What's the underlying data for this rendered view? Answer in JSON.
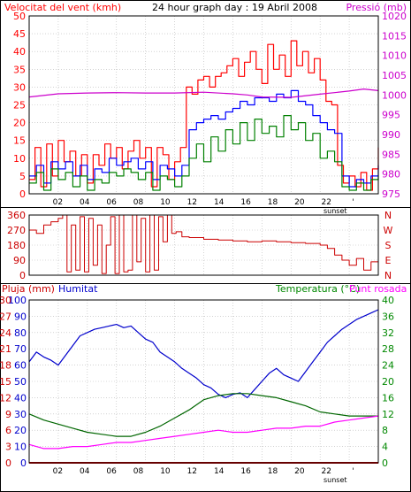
{
  "colors": {
    "wind_avg": "#008000",
    "wind_gust": "#ff0000",
    "wind_hi": "#0000ff",
    "pressure": "#cc00cc",
    "direction": "#cc0000",
    "humidity": "#0000cc",
    "temperature": "#006600",
    "dewpoint": "#ff00ff",
    "rain": "#cc0000",
    "grid": "#b8b8b8"
  },
  "chart_data": [
    {
      "type": "line",
      "title": "24 hour graph day : 19 Abril 2008",
      "ylabel_left": "Velocitat del vent (kmh)",
      "ylabel_right": "Pressió (mb)",
      "x_ticks": [
        "02",
        "04",
        "06",
        "08",
        "10",
        "12",
        "14",
        "16",
        "18",
        "20",
        "22",
        "'"
      ],
      "sunset_label": "sunset",
      "y_ticks_left": [
        "0",
        "5",
        "10",
        "15",
        "20",
        "25",
        "30",
        "35",
        "40",
        "45",
        "50"
      ],
      "y_ticks_right": [
        "975",
        "980",
        "985",
        "990",
        "995",
        "1000",
        "1005",
        "1010",
        "1015",
        "1020"
      ],
      "xlim": [
        0,
        24
      ],
      "ylim_left": [
        0,
        50
      ],
      "ylim_right": [
        975,
        1020
      ],
      "series": [
        {
          "axis": "left",
          "color_key": "wind_gust",
          "x": [
            0,
            0.4,
            0.8,
            1.2,
            1.6,
            2,
            2.4,
            2.8,
            3.2,
            3.6,
            4,
            4.4,
            4.8,
            5.2,
            5.6,
            6,
            6.4,
            6.8,
            7.2,
            7.6,
            8,
            8.4,
            8.8,
            9.2,
            9.6,
            10,
            10.4,
            10.8,
            11.2,
            11.6,
            12,
            12.4,
            12.8,
            13.2,
            13.6,
            14,
            14.4,
            14.8,
            15.2,
            15.6,
            16,
            16.4,
            16.8,
            17.2,
            17.6,
            18,
            18.4,
            18.8,
            19.2,
            19.6,
            20,
            20.4,
            20.8,
            21.2,
            21.6,
            22,
            22.4,
            22.8,
            23.2,
            23.6,
            24
          ],
          "values": [
            4,
            13,
            2,
            14,
            5,
            15,
            9,
            12,
            5,
            11,
            3,
            11,
            8,
            14,
            10,
            13,
            7,
            12,
            15,
            10,
            13,
            2,
            13,
            11,
            4,
            9,
            13,
            30,
            28,
            32,
            33,
            30,
            33,
            34,
            36,
            38,
            33,
            37,
            40,
            35,
            31,
            42,
            35,
            39,
            33,
            43,
            36,
            40,
            34,
            38,
            32,
            26,
            25,
            8,
            3,
            5,
            2,
            6,
            1,
            7,
            13
          ]
        },
        {
          "axis": "left",
          "color_key": "wind_hi",
          "x": [
            0,
            0.5,
            1,
            1.5,
            2,
            2.5,
            3,
            3.5,
            4,
            4.5,
            5,
            5.5,
            6,
            6.5,
            7,
            7.5,
            8,
            8.5,
            9,
            9.5,
            10,
            10.5,
            11,
            11.5,
            12,
            12.5,
            13,
            13.5,
            14,
            14.5,
            15,
            15.5,
            16,
            16.5,
            17,
            17.5,
            18,
            18.5,
            19,
            19.5,
            20,
            20.5,
            21,
            21.5,
            22,
            22.5,
            23,
            23.5,
            24
          ],
          "values": [
            5,
            8,
            3,
            9,
            7,
            9,
            5,
            8,
            4,
            7,
            6,
            10,
            8,
            9,
            10,
            7,
            9,
            4,
            8,
            7,
            5,
            8,
            18,
            20,
            21,
            22,
            21,
            23,
            24,
            26,
            25,
            27,
            27,
            26,
            28,
            27,
            29,
            26,
            25,
            22,
            20,
            18,
            17,
            5,
            2,
            4,
            3,
            5,
            8
          ]
        },
        {
          "axis": "left",
          "color_key": "wind_avg",
          "x": [
            0,
            0.5,
            1,
            1.5,
            2,
            2.5,
            3,
            3.5,
            4,
            4.5,
            5,
            5.5,
            6,
            6.5,
            7,
            7.5,
            8,
            8.5,
            9,
            9.5,
            10,
            10.5,
            11,
            11.5,
            12,
            12.5,
            13,
            13.5,
            14,
            14.5,
            15,
            15.5,
            16,
            16.5,
            17,
            17.5,
            18,
            18.5,
            19,
            19.5,
            20,
            20.5,
            21,
            21.5,
            22,
            22.5,
            23,
            23.5,
            24
          ],
          "values": [
            3,
            6,
            1,
            7,
            4,
            6,
            2,
            5,
            1,
            4,
            3,
            6,
            5,
            7,
            6,
            4,
            6,
            1,
            5,
            4,
            2,
            5,
            10,
            14,
            9,
            16,
            12,
            18,
            14,
            20,
            15,
            21,
            17,
            19,
            16,
            22,
            18,
            20,
            15,
            17,
            10,
            12,
            9,
            2,
            1,
            3,
            1,
            4,
            5
          ]
        },
        {
          "axis": "right",
          "color_key": "pressure",
          "x": [
            0,
            2,
            4,
            6,
            8,
            10,
            12,
            14,
            15,
            16,
            18,
            20,
            22,
            23,
            24
          ],
          "values": [
            999.5,
            1000.3,
            1000.5,
            1000.6,
            1000.5,
            1000.5,
            1000.7,
            1000.3,
            1000.0,
            999.5,
            999.4,
            1000.2,
            1001.0,
            1001.5,
            1001.1
          ]
        }
      ]
    },
    {
      "type": "line",
      "x_ticks": [],
      "y_ticks_left": [
        "0",
        "90",
        "180",
        "270",
        "360"
      ],
      "compass_labels": [
        "N",
        "W",
        "S",
        "E",
        "N"
      ],
      "xlim": [
        0,
        24
      ],
      "ylim": [
        0,
        360
      ],
      "series": [
        {
          "color_key": "direction",
          "x": [
            0,
            0.5,
            1,
            1.5,
            2,
            2.3,
            2.6,
            2.9,
            3.2,
            3.5,
            3.8,
            4.1,
            4.4,
            4.7,
            5,
            5.3,
            5.6,
            5.9,
            6.2,
            6.5,
            6.8,
            7.1,
            7.4,
            7.7,
            8,
            8.3,
            8.6,
            8.9,
            9.2,
            9.5,
            9.8,
            10.1,
            10.5,
            11,
            12,
            13,
            14,
            15,
            16,
            17,
            18,
            19,
            20,
            20.5,
            21,
            21.5,
            22,
            22.5,
            23,
            23.5,
            24
          ],
          "values": [
            270,
            250,
            300,
            320,
            340,
            360,
            20,
            300,
            30,
            350,
            20,
            340,
            60,
            300,
            10,
            180,
            350,
            10,
            360,
            20,
            30,
            360,
            80,
            340,
            20,
            360,
            30,
            350,
            200,
            360,
            250,
            260,
            230,
            225,
            215,
            210,
            205,
            200,
            205,
            200,
            195,
            190,
            180,
            160,
            120,
            90,
            60,
            100,
            30,
            80,
            40
          ]
        }
      ]
    },
    {
      "type": "line",
      "ylabel_left_rain": "Pluja (mm)",
      "ylabel_left_hum": "Humitat",
      "ylabel_right": "Temperatura (°C)",
      "ylabel_right2": "Punt rosada",
      "x_ticks": [
        "02",
        "04",
        "06",
        "08",
        "10",
        "12",
        "14",
        "16",
        "18",
        "20",
        "22",
        "'"
      ],
      "sunset_label": "sunset",
      "y_ticks_rain": [
        "0",
        "3",
        "6",
        "9",
        "12",
        "15",
        "18",
        "21",
        "24",
        "27",
        "30"
      ],
      "y_ticks_hum": [
        "0",
        "10",
        "20",
        "30",
        "40",
        "50",
        "60",
        "70",
        "80",
        "90",
        "100"
      ],
      "y_ticks_right": [
        "0",
        "4",
        "8",
        "12",
        "16",
        "20",
        "24",
        "28",
        "32",
        "36",
        "40"
      ],
      "xlim": [
        0,
        24
      ],
      "ylim_hum": [
        0,
        100
      ],
      "ylim_temp": [
        0,
        40
      ],
      "ylim_rain": [
        0,
        30
      ],
      "series": [
        {
          "axis": "hum",
          "color_key": "humidity",
          "x": [
            0,
            0.5,
            1,
            1.5,
            2,
            2.5,
            3,
            3.5,
            4,
            4.5,
            5,
            5.5,
            6,
            6.5,
            7,
            7.5,
            8,
            8.5,
            9,
            9.5,
            10,
            10.5,
            11,
            11.5,
            12,
            12.5,
            13,
            13.5,
            14,
            14.5,
            15,
            15.5,
            16,
            16.5,
            17,
            17.5,
            18,
            18.5,
            19,
            19.5,
            20,
            20.5,
            21,
            21.5,
            22,
            22.5,
            23,
            23.5,
            24
          ],
          "values": [
            62,
            68,
            65,
            63,
            60,
            66,
            72,
            78,
            80,
            82,
            83,
            84,
            85,
            83,
            84,
            80,
            76,
            74,
            68,
            65,
            62,
            58,
            55,
            52,
            48,
            46,
            42,
            40,
            42,
            43,
            40,
            45,
            50,
            55,
            58,
            54,
            52,
            50,
            56,
            62,
            68,
            74,
            78,
            82,
            85,
            88,
            90,
            92,
            94
          ]
        },
        {
          "axis": "temp",
          "color_key": "temperature",
          "x": [
            0,
            1,
            2,
            3,
            4,
            5,
            6,
            7,
            8,
            9,
            10,
            11,
            12,
            13,
            14,
            15,
            16,
            17,
            18,
            19,
            20,
            21,
            22,
            23,
            24
          ],
          "values": [
            12,
            10.5,
            9.5,
            8.5,
            7.5,
            7,
            6.5,
            6.5,
            7.5,
            9,
            11,
            13,
            15.5,
            16.5,
            17,
            17,
            16.5,
            16,
            15,
            14,
            12.5,
            12,
            11.5,
            11.5,
            11.5
          ]
        },
        {
          "axis": "temp",
          "color_key": "dewpoint",
          "x": [
            0,
            1,
            2,
            3,
            4,
            5,
            6,
            7,
            8,
            9,
            10,
            11,
            12,
            13,
            14,
            15,
            16,
            17,
            18,
            19,
            20,
            21,
            22,
            23,
            24
          ],
          "values": [
            4.5,
            3.5,
            3.5,
            4,
            4,
            4.5,
            5,
            5,
            5.5,
            6,
            6.5,
            7,
            7.5,
            8,
            7.5,
            7.5,
            8,
            8.5,
            8.5,
            9,
            9,
            10,
            10.5,
            11,
            11.5
          ]
        },
        {
          "axis": "rain",
          "color_key": "rain",
          "x": [
            0,
            24
          ],
          "values": [
            0,
            0
          ]
        }
      ]
    }
  ]
}
